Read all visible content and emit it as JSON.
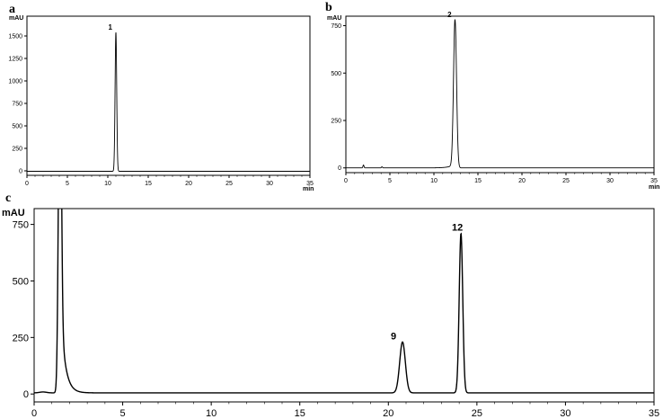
{
  "chart_data": [
    {
      "type": "line",
      "panel_label": "a",
      "y_unit": "mAU",
      "x_unit": "min",
      "xlim": [
        0,
        35
      ],
      "ylim": [
        -50,
        1720
      ],
      "x_ticks": [
        0,
        5,
        10,
        15,
        20,
        25,
        30,
        35
      ],
      "y_ticks": [
        0,
        250,
        500,
        750,
        1000,
        1250,
        1500
      ],
      "peaks": [
        {
          "label": "1",
          "rt": 11.0,
          "height": 1545,
          "sigma": 0.1
        }
      ],
      "baseline": -5,
      "noise": []
    },
    {
      "type": "line",
      "panel_label": "b",
      "y_unit": "mAU",
      "x_unit": "min",
      "xlim": [
        0,
        35
      ],
      "ylim": [
        -25,
        800
      ],
      "x_ticks": [
        0,
        5,
        10,
        15,
        20,
        25,
        30,
        35
      ],
      "y_ticks": [
        0,
        250,
        500,
        750
      ],
      "peaks": [
        {
          "label": "2",
          "rt": 12.4,
          "height": 780,
          "sigma": 0.17,
          "tail_left": 0.6,
          "tail_left_height": 20
        }
      ],
      "baseline": 0,
      "noise": [
        {
          "rt": 2.0,
          "height": 15,
          "sigma": 0.06
        },
        {
          "rt": 4.1,
          "height": 6,
          "sigma": 0.06
        }
      ]
    },
    {
      "type": "line",
      "panel_label": "c",
      "y_unit": "mAU",
      "x_unit": "",
      "xlim": [
        0,
        35
      ],
      "ylim": [
        -35,
        820
      ],
      "x_ticks": [
        0,
        5,
        10,
        15,
        20,
        25,
        30,
        35
      ],
      "y_ticks": [
        0,
        250,
        500,
        750
      ],
      "peaks": [
        {
          "label": "",
          "rt": 1.45,
          "height": 1500,
          "sigma": 0.08,
          "tail_right": 0.25,
          "tail_right_height": 450
        },
        {
          "label": "9",
          "rt": 20.8,
          "height": 225,
          "sigma": 0.16
        },
        {
          "label": "12",
          "rt": 24.1,
          "height": 705,
          "sigma": 0.1
        }
      ],
      "baseline": 5,
      "noise": [
        {
          "rt": 0.5,
          "height": 4,
          "sigma": 0.2
        }
      ]
    }
  ]
}
